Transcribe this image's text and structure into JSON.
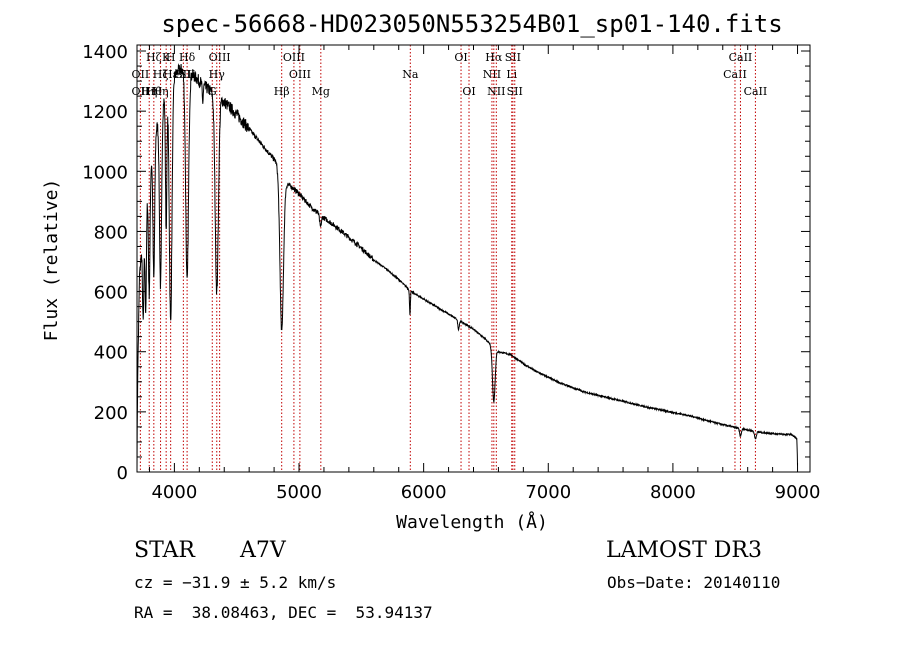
{
  "chart_data": {
    "type": "line",
    "title": "spec-56668-HD023050N553254B01_sp01-140.fits",
    "xlabel": "Wavelength (Å)",
    "ylabel": "Flux (relative)",
    "xlim": [
      3700,
      9100
    ],
    "ylim": [
      0,
      1420
    ],
    "xticks": [
      4000,
      5000,
      6000,
      7000,
      8000,
      9000
    ],
    "yticks": [
      0,
      200,
      400,
      600,
      800,
      1000,
      1200,
      1400
    ],
    "spectrum": {
      "continuum": [
        [
          3700,
          0
        ],
        [
          3705,
          300
        ],
        [
          3720,
          650
        ],
        [
          3760,
          850
        ],
        [
          3800,
          1000
        ],
        [
          3850,
          1130
        ],
        [
          3900,
          1220
        ],
        [
          3950,
          1280
        ],
        [
          4000,
          1320
        ],
        [
          4050,
          1340
        ],
        [
          4100,
          1330
        ],
        [
          4150,
          1320
        ],
        [
          4200,
          1300
        ],
        [
          4250,
          1280
        ],
        [
          4300,
          1265
        ],
        [
          4400,
          1230
        ],
        [
          4500,
          1190
        ],
        [
          4600,
          1140
        ],
        [
          4700,
          1090
        ],
        [
          4800,
          1040
        ],
        [
          4850,
          1010
        ],
        [
          4900,
          960
        ],
        [
          4950,
          945
        ],
        [
          5000,
          925
        ],
        [
          5100,
          880
        ],
        [
          5200,
          845
        ],
        [
          5300,
          815
        ],
        [
          5400,
          780
        ],
        [
          5500,
          745
        ],
        [
          5600,
          705
        ],
        [
          5700,
          675
        ],
        [
          5800,
          640
        ],
        [
          5900,
          600
        ],
        [
          6000,
          575
        ],
        [
          6100,
          550
        ],
        [
          6200,
          525
        ],
        [
          6300,
          500
        ],
        [
          6400,
          475
        ],
        [
          6500,
          440
        ],
        [
          6600,
          400
        ],
        [
          6700,
          390
        ],
        [
          6800,
          360
        ],
        [
          6900,
          335
        ],
        [
          7000,
          315
        ],
        [
          7100,
          295
        ],
        [
          7200,
          280
        ],
        [
          7300,
          265
        ],
        [
          7400,
          255
        ],
        [
          7500,
          245
        ],
        [
          7600,
          235
        ],
        [
          7700,
          225
        ],
        [
          7800,
          215
        ],
        [
          7900,
          207
        ],
        [
          8000,
          198
        ],
        [
          8100,
          190
        ],
        [
          8200,
          180
        ],
        [
          8300,
          168
        ],
        [
          8400,
          158
        ],
        [
          8500,
          148
        ],
        [
          8600,
          140
        ],
        [
          8700,
          132
        ],
        [
          8800,
          128
        ],
        [
          8900,
          125
        ],
        [
          8950,
          125
        ],
        [
          8995,
          110
        ],
        [
          9000,
          20
        ]
      ],
      "absorption_lines": [
        {
          "center": 3750,
          "depth": 300,
          "width": 8
        },
        {
          "center": 3770,
          "depth": 350,
          "width": 8
        },
        {
          "center": 3798,
          "depth": 400,
          "width": 9
        },
        {
          "center": 3835,
          "depth": 450,
          "width": 10
        },
        {
          "center": 3889,
          "depth": 580,
          "width": 12
        },
        {
          "center": 3934,
          "depth": 450,
          "width": 8
        },
        {
          "center": 3970,
          "depth": 800,
          "width": 15
        },
        {
          "center": 4102,
          "depth": 700,
          "width": 16
        },
        {
          "center": 4227,
          "depth": 60,
          "width": 6
        },
        {
          "center": 4340,
          "depth": 650,
          "width": 18
        },
        {
          "center": 4861,
          "depth": 530,
          "width": 20
        },
        {
          "center": 5172,
          "depth": 40,
          "width": 10
        },
        {
          "center": 5890,
          "depth": 80,
          "width": 5
        },
        {
          "center": 6280,
          "depth": 30,
          "width": 8
        },
        {
          "center": 6563,
          "depth": 180,
          "width": 15
        },
        {
          "center": 8542,
          "depth": 25,
          "width": 10
        },
        {
          "center": 8662,
          "depth": 25,
          "width": 10
        }
      ]
    },
    "line_markers": [
      {
        "wavelength": 3727,
        "labels": [
          {
            "text": "OII",
            "row": 1
          },
          {
            "text": "OII",
            "row": 2
          }
        ]
      },
      {
        "wavelength": 3798,
        "labels": [
          {
            "text": "Hη",
            "row": 2
          }
        ]
      },
      {
        "wavelength": 3835,
        "labels": [
          {
            "text": "Hζ",
            "row": 0
          },
          {
            "text": "Hθ",
            "row": 2
          }
        ]
      },
      {
        "wavelength": 3889,
        "labels": [
          {
            "text": "Hζ",
            "row": 1
          },
          {
            "text": "Hη",
            "row": 2
          }
        ]
      },
      {
        "wavelength": 3934,
        "labels": [
          {
            "text": "K",
            "row": 0
          }
        ]
      },
      {
        "wavelength": 3970,
        "labels": [
          {
            "text": "H",
            "row": 0
          },
          {
            "text": "Hε",
            "row": 1
          }
        ]
      },
      {
        "wavelength": 4072,
        "labels": [
          {
            "text": "SII",
            "row": 1
          }
        ]
      },
      {
        "wavelength": 4102,
        "labels": [
          {
            "text": "Hδ",
            "row": 0
          },
          {
            "text": "SII",
            "row": 1
          }
        ]
      },
      {
        "wavelength": 4304,
        "labels": [
          {
            "text": "G",
            "row": 2
          }
        ]
      },
      {
        "wavelength": 4340,
        "labels": [
          {
            "text": "Hγ",
            "row": 1
          }
        ]
      },
      {
        "wavelength": 4363,
        "labels": [
          {
            "text": "OIII",
            "row": 0
          }
        ]
      },
      {
        "wavelength": 4861,
        "labels": [
          {
            "text": "Hβ",
            "row": 2
          }
        ]
      },
      {
        "wavelength": 4959,
        "labels": [
          {
            "text": "OIII",
            "row": 0
          }
        ]
      },
      {
        "wavelength": 5007,
        "labels": [
          {
            "text": "OIII",
            "row": 1
          }
        ]
      },
      {
        "wavelength": 5175,
        "labels": [
          {
            "text": "Mg",
            "row": 2
          }
        ]
      },
      {
        "wavelength": 5893,
        "labels": [
          {
            "text": "Na",
            "row": 1
          }
        ]
      },
      {
        "wavelength": 6300,
        "labels": [
          {
            "text": "OI",
            "row": 0
          }
        ]
      },
      {
        "wavelength": 6364,
        "labels": [
          {
            "text": "OI",
            "row": 2
          }
        ]
      },
      {
        "wavelength": 6548,
        "labels": [
          {
            "text": "NII",
            "row": 1
          }
        ]
      },
      {
        "wavelength": 6563,
        "labels": [
          {
            "text": "Hα",
            "row": 0
          }
        ]
      },
      {
        "wavelength": 6583,
        "labels": [
          {
            "text": "NII",
            "row": 2
          }
        ]
      },
      {
        "wavelength": 6707,
        "labels": [
          {
            "text": "Li",
            "row": 1
          }
        ]
      },
      {
        "wavelength": 6716,
        "labels": [
          {
            "text": "SII",
            "row": 0
          }
        ]
      },
      {
        "wavelength": 6731,
        "labels": [
          {
            "text": "SII",
            "row": 2
          }
        ]
      },
      {
        "wavelength": 8498,
        "labels": [
          {
            "text": "CaII",
            "row": 1
          }
        ]
      },
      {
        "wavelength": 8542,
        "labels": [
          {
            "text": "CaII",
            "row": 0
          }
        ]
      },
      {
        "wavelength": 8662,
        "labels": [
          {
            "text": "CaII",
            "row": 2
          }
        ]
      }
    ],
    "colors": {
      "spectrum": "#000000",
      "marker_line": "#c00000"
    }
  },
  "info": {
    "object_type": "STAR",
    "spectral_class": "A7V",
    "survey": "LAMOST DR3",
    "cz": "cz = −31.9 ± 5.2 km/s",
    "obs_date": "Obs−Date: 20140110",
    "coords": "RA =  38.08463, DEC =  53.94137"
  }
}
